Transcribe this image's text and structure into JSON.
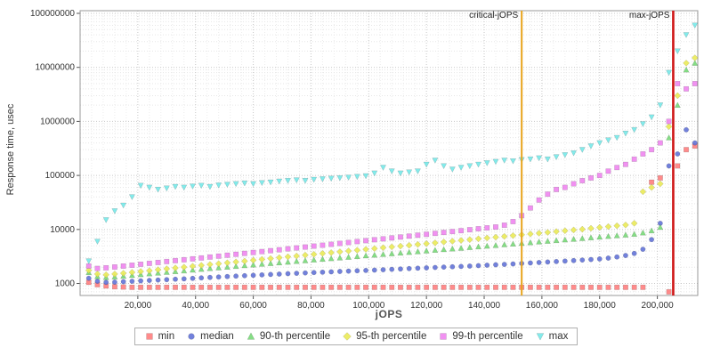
{
  "chart_data": {
    "type": "scatter",
    "title": "",
    "xlabel": "jOPS",
    "ylabel": "Response time, usec",
    "y_scale": "log",
    "grid": true,
    "legend_position": "bottom",
    "xlim": [
      0,
      214000
    ],
    "ylim": [
      600,
      112000000
    ],
    "x_ticks": [
      20000,
      40000,
      60000,
      80000,
      100000,
      120000,
      140000,
      160000,
      180000,
      200000
    ],
    "y_ticks": [
      1000,
      10000,
      100000,
      1000000,
      10000000,
      100000000
    ],
    "annotations": [
      {
        "label": "critical-jOPS",
        "x": 153000,
        "color": "#e8a41c",
        "width": 2
      },
      {
        "label": "max-jOPS",
        "x": 205500,
        "color": "#cf1717",
        "width": 2.6
      }
    ],
    "x": [
      3000,
      6000,
      9000,
      12000,
      15000,
      18000,
      21000,
      24000,
      27000,
      30000,
      33000,
      36000,
      39000,
      42000,
      45000,
      48000,
      51000,
      54000,
      57000,
      60000,
      63000,
      66000,
      69000,
      72000,
      75000,
      78000,
      81000,
      84000,
      87000,
      90000,
      93000,
      96000,
      99000,
      102000,
      105000,
      108000,
      111000,
      114000,
      117000,
      120000,
      123000,
      126000,
      129000,
      132000,
      135000,
      138000,
      141000,
      144000,
      147000,
      150000,
      153000,
      156000,
      159000,
      162000,
      165000,
      168000,
      171000,
      174000,
      177000,
      180000,
      183000,
      186000,
      189000,
      192000,
      195000,
      198000,
      201000,
      204000,
      207000,
      210000,
      213000
    ],
    "series": [
      {
        "name": "min",
        "marker": "square",
        "color": "#ff7b7b",
        "values": [
          1050,
          950,
          900,
          870,
          860,
          850,
          850,
          850,
          850,
          850,
          850,
          850,
          850,
          850,
          850,
          850,
          850,
          850,
          850,
          850,
          850,
          850,
          850,
          850,
          850,
          850,
          850,
          850,
          850,
          850,
          850,
          850,
          850,
          850,
          850,
          850,
          850,
          850,
          850,
          850,
          850,
          850,
          850,
          850,
          850,
          850,
          850,
          850,
          850,
          850,
          850,
          850,
          850,
          850,
          850,
          850,
          850,
          850,
          850,
          850,
          850,
          850,
          850,
          850,
          850,
          75000,
          90000,
          700,
          150000,
          300000,
          350000
        ]
      },
      {
        "name": "median",
        "marker": "circle",
        "color": "#5f6fd6",
        "values": [
          1250,
          1100,
          1050,
          1060,
          1080,
          1100,
          1120,
          1140,
          1160,
          1180,
          1200,
          1220,
          1245,
          1270,
          1295,
          1320,
          1345,
          1370,
          1395,
          1420,
          1445,
          1470,
          1495,
          1520,
          1545,
          1570,
          1595,
          1620,
          1645,
          1670,
          1695,
          1720,
          1745,
          1770,
          1800,
          1830,
          1860,
          1890,
          1920,
          1950,
          1980,
          2010,
          2040,
          2070,
          2100,
          2140,
          2180,
          2220,
          2260,
          2300,
          2350,
          2400,
          2450,
          2500,
          2550,
          2600,
          2660,
          2720,
          2780,
          2850,
          2950,
          3100,
          3300,
          3600,
          4300,
          6500,
          13000,
          150000,
          250000,
          700000,
          400000
        ]
      },
      {
        "name": "90-th percentile",
        "marker": "triangle-up",
        "color": "#74d874",
        "values": [
          1600,
          1350,
          1300,
          1330,
          1370,
          1420,
          1470,
          1520,
          1570,
          1620,
          1670,
          1720,
          1780,
          1840,
          1900,
          1960,
          2020,
          2080,
          2150,
          2220,
          2290,
          2360,
          2430,
          2500,
          2580,
          2660,
          2740,
          2820,
          2900,
          2990,
          3080,
          3170,
          3270,
          3370,
          3470,
          3570,
          3680,
          3790,
          3900,
          4020,
          4140,
          4260,
          4390,
          4520,
          4660,
          4800,
          4940,
          5090,
          5240,
          5400,
          5560,
          5730,
          5900,
          6080,
          6260,
          6450,
          6640,
          6840,
          7050,
          7260,
          7480,
          7700,
          7930,
          8200,
          8700,
          9500,
          11000,
          500000,
          2000000,
          9000000,
          12000000
        ]
      },
      {
        "name": "95-th percentile",
        "marker": "diamond",
        "color": "#e9e952",
        "values": [
          1750,
          1500,
          1450,
          1500,
          1550,
          1610,
          1670,
          1730,
          1800,
          1870,
          1940,
          2010,
          2090,
          2170,
          2250,
          2330,
          2420,
          2510,
          2600,
          2700,
          2800,
          2900,
          3010,
          3120,
          3230,
          3350,
          3470,
          3600,
          3730,
          3860,
          4000,
          4140,
          4290,
          4440,
          4600,
          4760,
          4930,
          5100,
          5280,
          5470,
          5660,
          5860,
          6060,
          6270,
          6490,
          6720,
          6950,
          7190,
          7440,
          7700,
          7970,
          8250,
          8540,
          8840,
          9150,
          9470,
          9800,
          10100,
          10500,
          10900,
          11300,
          11700,
          12100,
          13000,
          50000,
          60000,
          70000,
          800000,
          3000000,
          12000000,
          15000000
        ]
      },
      {
        "name": "99-th percentile",
        "marker": "square",
        "color": "#ef82ef",
        "values": [
          2100,
          1900,
          1950,
          2020,
          2100,
          2180,
          2270,
          2360,
          2450,
          2550,
          2650,
          2750,
          2860,
          2970,
          3090,
          3210,
          3340,
          3470,
          3610,
          3750,
          3900,
          4050,
          4210,
          4380,
          4550,
          4730,
          4920,
          5110,
          5310,
          5520,
          5740,
          5970,
          6200,
          6450,
          6700,
          6970,
          7240,
          7530,
          7830,
          8140,
          8460,
          8800,
          9150,
          9500,
          9900,
          10300,
          10700,
          11100,
          12000,
          14000,
          18000,
          25000,
          35000,
          45000,
          55000,
          60000,
          70000,
          80000,
          90000,
          100000,
          120000,
          140000,
          160000,
          200000,
          250000,
          300000,
          400000,
          1000000,
          5000000,
          4000000,
          5000000
        ]
      },
      {
        "name": "max",
        "marker": "triangle-down",
        "color": "#72e8e8",
        "values": [
          2600,
          6000,
          15000,
          22000,
          28000,
          40000,
          65000,
          60000,
          55000,
          58000,
          62000,
          60000,
          63000,
          65000,
          62000,
          66000,
          68000,
          70000,
          72000,
          70000,
          73000,
          75000,
          78000,
          80000,
          82000,
          80000,
          84000,
          86000,
          88000,
          90000,
          92000,
          95000,
          98000,
          110000,
          140000,
          120000,
          110000,
          115000,
          120000,
          160000,
          190000,
          150000,
          130000,
          140000,
          150000,
          160000,
          170000,
          180000,
          190000,
          185000,
          195000,
          200000,
          210000,
          200000,
          220000,
          240000,
          260000,
          300000,
          350000,
          400000,
          450000,
          500000,
          600000,
          700000,
          900000,
          1200000,
          2000000,
          8000000,
          20000000,
          40000000,
          60000000
        ]
      }
    ]
  }
}
